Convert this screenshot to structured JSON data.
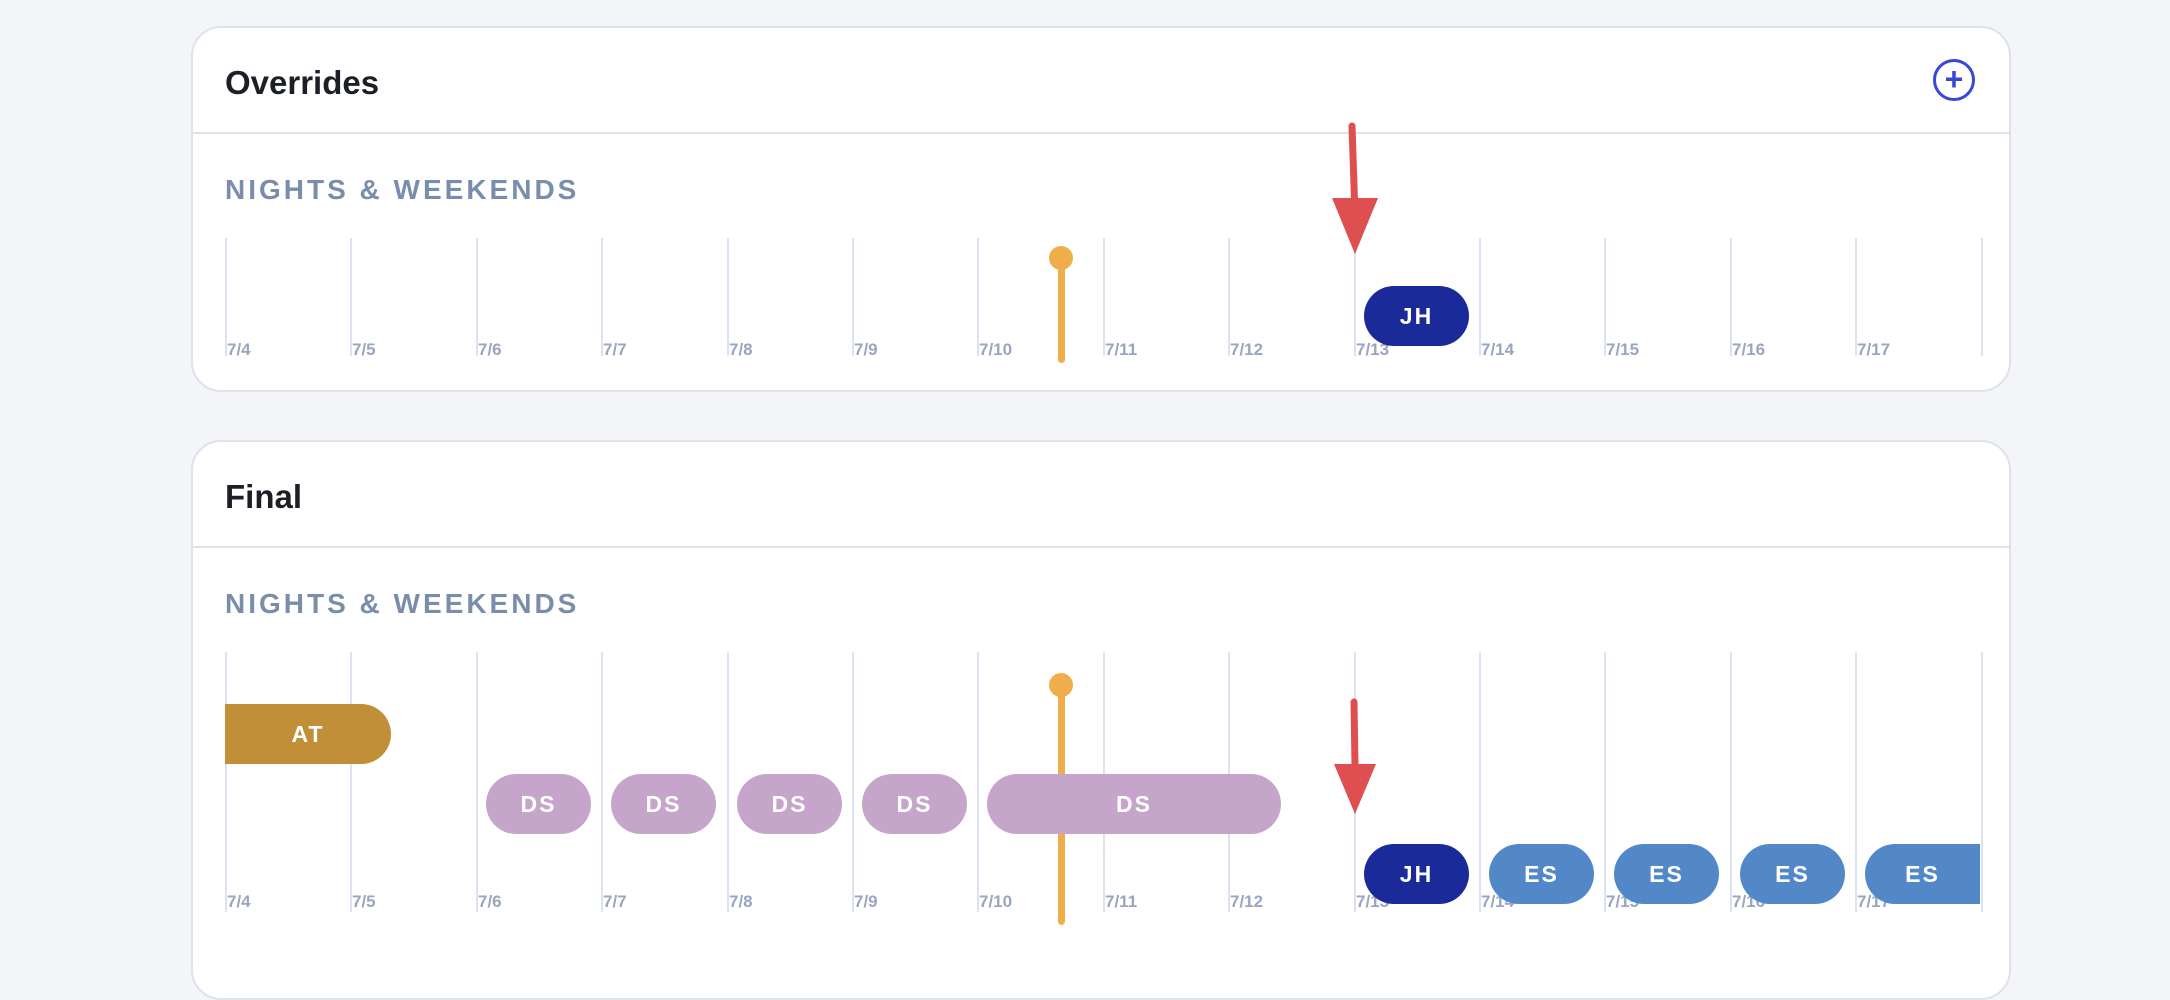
{
  "colors": {
    "background": "#f4f5f9",
    "accent": "#3b46d6",
    "now_marker": "#f0ae4a",
    "annotation_arrow": "#de4f4f",
    "AT": "#c08f38",
    "DS": "#c6a5ca",
    "JH": "#1a2b99",
    "ES": "#5287c8"
  },
  "overrides": {
    "title": "Overrides",
    "add_icon": "plus-circle-icon",
    "add_symbol": "+",
    "section_label": "NIGHTS & WEEKENDS",
    "dates": [
      "7/4",
      "7/5",
      "7/6",
      "7/7",
      "7/8",
      "7/9",
      "7/10",
      "7/11",
      "7/12",
      "7/13",
      "7/14",
      "7/15",
      "7/16",
      "7/17"
    ],
    "shifts": [
      {
        "initials": "JH",
        "start_day": 9,
        "end_day": 10,
        "row": 0
      }
    ],
    "now_day": 6.67
  },
  "final": {
    "title": "Final",
    "section_label": "NIGHTS & WEEKENDS",
    "dates": [
      "7/4",
      "7/5",
      "7/6",
      "7/7",
      "7/8",
      "7/9",
      "7/10",
      "7/11",
      "7/12",
      "7/13",
      "7/14",
      "7/15",
      "7/16",
      "7/17"
    ],
    "shifts": [
      {
        "initials": "AT",
        "start_day": 0,
        "end_day": 1.4,
        "row": 0
      },
      {
        "initials": "DS",
        "start_day": 2,
        "end_day": 3,
        "row": 1
      },
      {
        "initials": "DS",
        "start_day": 3,
        "end_day": 4,
        "row": 1
      },
      {
        "initials": "DS",
        "start_day": 4,
        "end_day": 5,
        "row": 1
      },
      {
        "initials": "DS",
        "start_day": 5,
        "end_day": 6,
        "row": 1
      },
      {
        "initials": "DS",
        "start_day": 6,
        "end_day": 8.5,
        "row": 1
      },
      {
        "initials": "JH",
        "start_day": 9,
        "end_day": 10,
        "row": 2
      },
      {
        "initials": "ES",
        "start_day": 10,
        "end_day": 11,
        "row": 2
      },
      {
        "initials": "ES",
        "start_day": 11,
        "end_day": 12,
        "row": 2
      },
      {
        "initials": "ES",
        "start_day": 12,
        "end_day": 13,
        "row": 2
      },
      {
        "initials": "ES",
        "start_day": 13,
        "end_day": 14,
        "row": 2
      }
    ],
    "now_day": 6.67
  }
}
